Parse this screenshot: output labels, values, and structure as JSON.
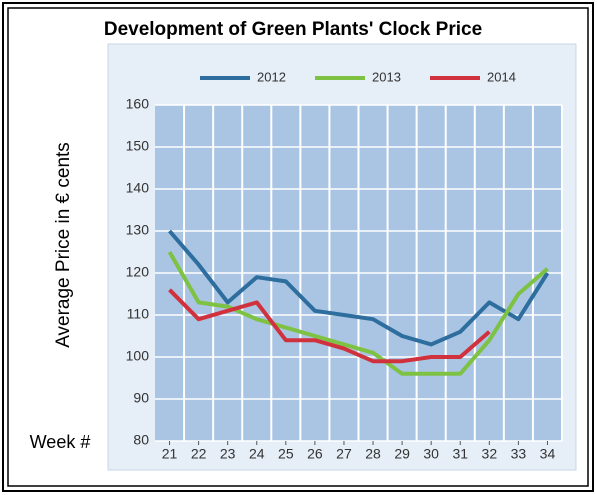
{
  "chart_data": {
    "type": "line",
    "title": "Development of Green Plants' Clock Price",
    "y_label": "Average Price in € cents",
    "x_label": "Week #",
    "x": [
      21,
      22,
      23,
      24,
      25,
      26,
      27,
      28,
      29,
      30,
      31,
      32,
      33,
      34
    ],
    "xlim": [
      20.5,
      34.5
    ],
    "series": [
      {
        "name": "2012",
        "color": "#2e6e9e",
        "values": [
          130,
          122,
          113,
          119,
          118,
          111,
          110,
          109,
          105,
          103,
          106,
          113,
          109,
          120
        ]
      },
      {
        "name": "2013",
        "color": "#7dc242",
        "values": [
          125,
          113,
          112,
          109,
          107,
          105,
          103,
          101,
          96,
          96,
          96,
          104,
          115,
          121
        ]
      },
      {
        "name": "2014",
        "color": "#d0313d",
        "values": [
          116,
          109,
          111,
          113,
          104,
          104,
          102,
          99,
          99,
          100,
          100,
          106,
          null,
          null
        ]
      }
    ],
    "ylim": [
      80,
      160
    ],
    "yticks": [
      80,
      90,
      100,
      110,
      120,
      130,
      140,
      150,
      160
    ],
    "grid": true
  }
}
